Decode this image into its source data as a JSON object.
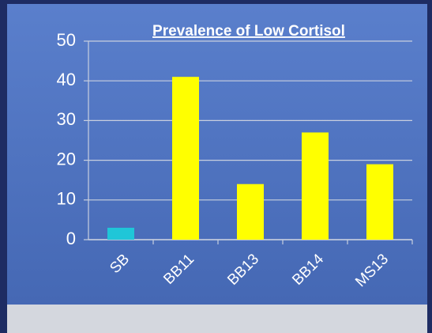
{
  "chart_data": {
    "type": "bar",
    "title": "Prevalence of Low Cortisol",
    "categories": [
      "SB",
      "BB11",
      "BB13",
      "BB14",
      "MS13"
    ],
    "values": [
      3,
      41,
      14,
      27,
      19
    ],
    "colors": [
      "#1fc6d8",
      "#ffff00",
      "#ffff00",
      "#ffff00",
      "#ffff00"
    ],
    "ylim": [
      0,
      50
    ],
    "yticks": [
      0,
      10,
      20,
      30,
      40,
      50
    ],
    "grid": true
  }
}
